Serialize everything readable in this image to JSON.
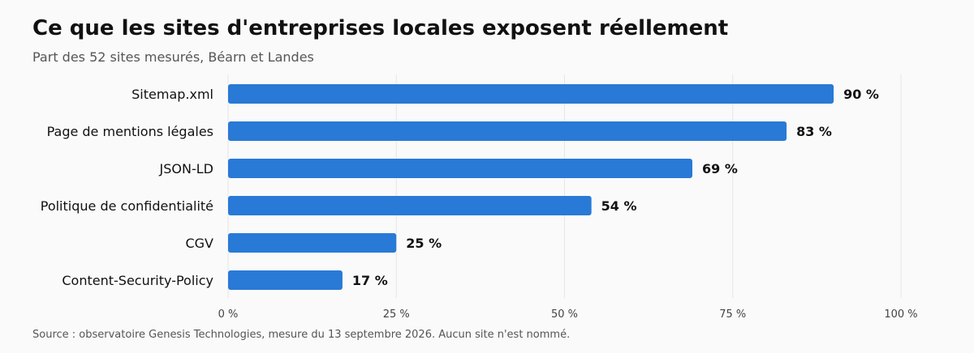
{
  "title": "Ce que les sites d'entreprises locales exposent réellement",
  "subtitle": "Part des 52 sites mesurés, Béarn et Landes",
  "source": "Source : observatoire Genesis Technologies, mesure du 13 septembre 2026. Aucun site n'est nommé.",
  "colors": {
    "bar": "#2979d6",
    "grid": "#e6e6e6",
    "tick_text": "#444444",
    "category_text": "#111111",
    "value_text": "#111111"
  },
  "chart_data": {
    "type": "bar",
    "orientation": "horizontal",
    "categories": [
      "Sitemap.xml",
      "Page de mentions légales",
      "JSON-LD",
      "Politique de confidentialité",
      "CGV",
      "Content-Security-Policy"
    ],
    "values": [
      90,
      83,
      69,
      54,
      25,
      17
    ],
    "value_labels": [
      "90 %",
      "83 %",
      "69 %",
      "54 %",
      "25 %",
      "17 %"
    ],
    "xlim": [
      0,
      100
    ],
    "xticks": [
      0,
      25,
      50,
      75,
      100
    ],
    "xtick_labels": [
      "0 %",
      "25 %",
      "50 %",
      "75 %",
      "100 %"
    ],
    "grid": true,
    "xlabel": "",
    "ylabel": ""
  }
}
